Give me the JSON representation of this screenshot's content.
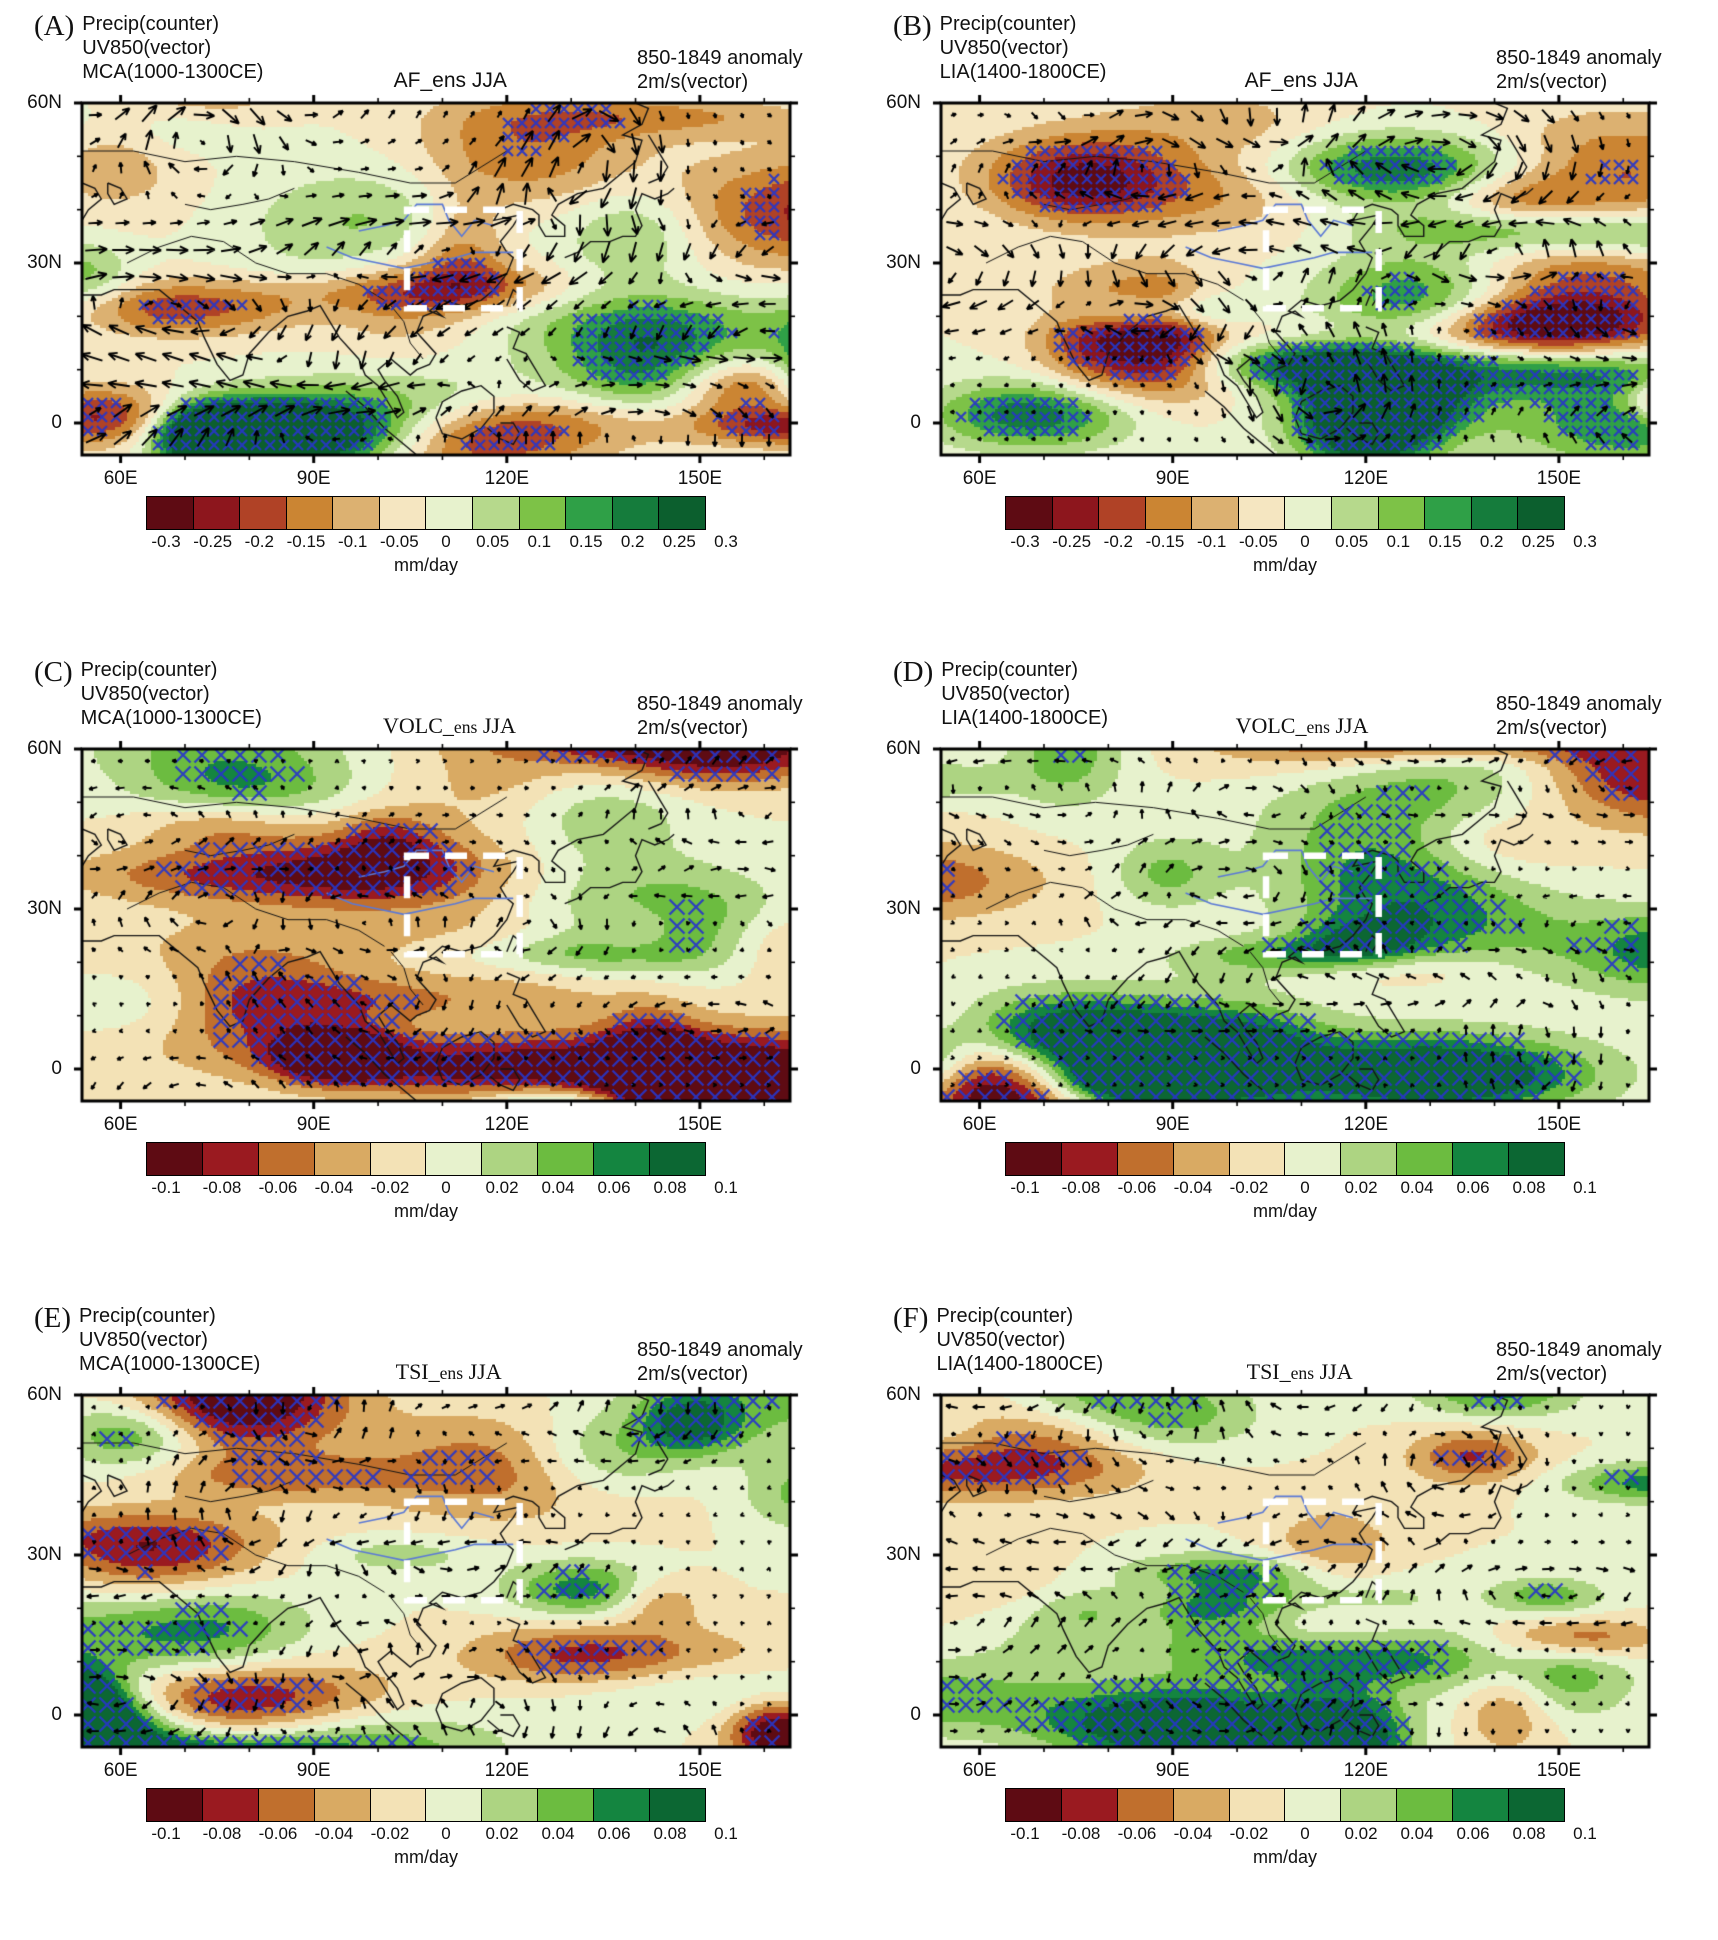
{
  "figure": {
    "panels": [
      {
        "label": "(A)",
        "info_lines": [
          "Precip(counter)",
          "UV850(vector)",
          "MCA(1000-1300CE)"
        ],
        "title": "AF_ens JJA",
        "title_serif": false,
        "right_lines": [
          "850-1849 anomaly",
          "2m/s(vector)"
        ],
        "y_ticks": [
          "60N",
          "30N",
          "0"
        ],
        "x_ticks": [
          "60E",
          "90E",
          "120E",
          "150E"
        ],
        "colorbar": {
          "tick_labels": [
            "-0.3",
            "-0.25",
            "-0.2",
            "-0.15",
            "-0.1",
            "-0.05",
            "0",
            "0.05",
            "0.1",
            "0.15",
            "0.2",
            "0.25",
            "0.3"
          ],
          "colors": [
            "#5e0b13",
            "#8d161d",
            "#b04226",
            "#cb8533",
            "#dcb171",
            "#f5e6c1",
            "#e7f2cd",
            "#b6d98c",
            "#7dc247",
            "#2fa047",
            "#157c3c",
            "#0c5f2e"
          ],
          "unit": "mm/day"
        },
        "map": {
          "seed": 8,
          "arrow_scale": 1.0,
          "hatch_size": 10,
          "hatch_color": "#2836c8",
          "arrow_color": "#000000",
          "box_color": "#ffffff",
          "river_color": "#5b79d6",
          "coast_color": "#141414"
        }
      },
      {
        "label": "(B)",
        "info_lines": [
          "Precip(counter)",
          "UV850(vector)",
          "LIA(1400-1800CE)"
        ],
        "title": "AF_ens JJA",
        "title_serif": false,
        "right_lines": [
          "850-1849 anomaly",
          "2m/s(vector)"
        ],
        "y_ticks": [
          "60N",
          "30N",
          "0"
        ],
        "x_ticks": [
          "60E",
          "90E",
          "120E",
          "150E"
        ],
        "colorbar": {
          "tick_labels": [
            "-0.3",
            "-0.25",
            "-0.2",
            "-0.15",
            "-0.1",
            "-0.05",
            "0",
            "0.05",
            "0.1",
            "0.15",
            "0.2",
            "0.25",
            "0.3"
          ],
          "colors": [
            "#5e0b13",
            "#8d161d",
            "#b04226",
            "#cb8533",
            "#dcb171",
            "#f5e6c1",
            "#e7f2cd",
            "#b6d98c",
            "#7dc247",
            "#2fa047",
            "#157c3c",
            "#0c5f2e"
          ],
          "unit": "mm/day"
        },
        "map": {
          "seed": 15,
          "arrow_scale": 0.85,
          "hatch_size": 10,
          "hatch_color": "#2836c8",
          "arrow_color": "#000000",
          "box_color": "#ffffff",
          "river_color": "#5b79d6",
          "coast_color": "#141414"
        }
      },
      {
        "label": "(C)",
        "info_lines": [
          "Precip(counter)",
          "UV850(vector)",
          "MCA(1000-1300CE)"
        ],
        "title": "VOLC_ens JJA",
        "title_serif": true,
        "right_lines": [
          "850-1849 anomaly",
          "2m/s(vector)"
        ],
        "y_ticks": [
          "60N",
          "30N",
          "0"
        ],
        "x_ticks": [
          "60E",
          "90E",
          "120E",
          "150E"
        ],
        "colorbar": {
          "tick_labels": [
            "-0.1",
            "-0.08",
            "-0.06",
            "-0.04",
            "-0.02",
            "0",
            "0.02",
            "0.04",
            "0.06",
            "0.08",
            "0.1"
          ],
          "colors": [
            "#5e0b13",
            "#9a1a20",
            "#c06f2d",
            "#d9aa63",
            "#f3e2b6",
            "#e7f2cd",
            "#add482",
            "#6cbc40",
            "#148540",
            "#0c6733"
          ],
          "unit": "mm/day"
        },
        "map": {
          "seed": 23,
          "arrow_scale": 0.5,
          "hatch_size": 15,
          "hatch_color": "#2836c8",
          "arrow_color": "#000000",
          "box_color": "#ffffff",
          "river_color": "#5b79d6",
          "coast_color": "#141414"
        }
      },
      {
        "label": "(D)",
        "info_lines": [
          "Precip(counter)",
          "UV850(vector)",
          "LIA(1400-1800CE)"
        ],
        "title": "VOLC_ens JJA",
        "title_serif": true,
        "right_lines": [
          "850-1849 anomaly",
          "2m/s(vector)"
        ],
        "y_ticks": [
          "60N",
          "30N",
          "0"
        ],
        "x_ticks": [
          "60E",
          "90E",
          "120E",
          "150E"
        ],
        "colorbar": {
          "tick_labels": [
            "-0.1",
            "-0.08",
            "-0.06",
            "-0.04",
            "-0.02",
            "0",
            "0.02",
            "0.04",
            "0.06",
            "0.08",
            "0.1"
          ],
          "colors": [
            "#5e0b13",
            "#9a1a20",
            "#c06f2d",
            "#d9aa63",
            "#f3e2b6",
            "#e7f2cd",
            "#add482",
            "#6cbc40",
            "#148540",
            "#0c6733"
          ],
          "unit": "mm/day"
        },
        "map": {
          "seed": 31,
          "arrow_scale": 0.5,
          "hatch_size": 15,
          "hatch_color": "#2836c8",
          "arrow_color": "#000000",
          "box_color": "#ffffff",
          "river_color": "#5b79d6",
          "coast_color": "#141414"
        }
      },
      {
        "label": "(E)",
        "info_lines": [
          "Precip(counter)",
          "UV850(vector)",
          "MCA(1000-1300CE)"
        ],
        "title": "TSI_ens JJA",
        "title_serif": true,
        "right_lines": [
          "850-1849 anomaly",
          "2m/s(vector)"
        ],
        "y_ticks": [
          "60N",
          "30N",
          "0"
        ],
        "x_ticks": [
          "60E",
          "90E",
          "120E",
          "150E"
        ],
        "colorbar": {
          "tick_labels": [
            "-0.1",
            "-0.08",
            "-0.06",
            "-0.04",
            "-0.02",
            "0",
            "0.02",
            "0.04",
            "0.06",
            "0.08",
            "0.1"
          ],
          "colors": [
            "#5e0b13",
            "#9a1a20",
            "#c06f2d",
            "#d9aa63",
            "#f3e2b6",
            "#e7f2cd",
            "#add482",
            "#6cbc40",
            "#148540",
            "#0c6733"
          ],
          "unit": "mm/day"
        },
        "map": {
          "seed": 47,
          "arrow_scale": 0.55,
          "hatch_size": 15,
          "hatch_color": "#2836c8",
          "arrow_color": "#000000",
          "box_color": "#ffffff",
          "river_color": "#5b79d6",
          "coast_color": "#141414"
        }
      },
      {
        "label": "(F)",
        "info_lines": [
          "Precip(counter)",
          "UV850(vector)",
          "LIA(1400-1800CE)"
        ],
        "title": "TSI_ens JJA",
        "title_serif": true,
        "right_lines": [
          "850-1849 anomaly",
          "2m/s(vector)"
        ],
        "y_ticks": [
          "60N",
          "30N",
          "0"
        ],
        "x_ticks": [
          "60E",
          "90E",
          "120E",
          "150E"
        ],
        "colorbar": {
          "tick_labels": [
            "-0.1",
            "-0.08",
            "-0.06",
            "-0.04",
            "-0.02",
            "0",
            "0.02",
            "0.04",
            "0.06",
            "0.08",
            "0.1"
          ],
          "colors": [
            "#5e0b13",
            "#9a1a20",
            "#c06f2d",
            "#d9aa63",
            "#f3e2b6",
            "#e7f2cd",
            "#add482",
            "#6cbc40",
            "#148540",
            "#0c6733"
          ],
          "unit": "mm/day"
        },
        "map": {
          "seed": 59,
          "arrow_scale": 0.55,
          "hatch_size": 15,
          "hatch_color": "#2836c8",
          "arrow_color": "#000000",
          "box_color": "#ffffff",
          "river_color": "#5b79d6",
          "coast_color": "#141414"
        }
      }
    ]
  },
  "chart_data": [
    {
      "panel": "A",
      "type": "heatmap",
      "subtype": "filled-contour map with wind vectors",
      "shaded_variable": "Precip anomaly",
      "vector_variable": "UV850 wind (reference 2 m/s)",
      "experiment": "AF_ens",
      "season": "JJA",
      "epoch": "MCA (1000-1300 CE)",
      "baseline": "850-1849 anomaly",
      "unit": "mm/day",
      "colorbar_ticks": [
        -0.3,
        -0.25,
        -0.2,
        -0.15,
        -0.1,
        -0.05,
        0,
        0.05,
        0.1,
        0.15,
        0.2,
        0.25,
        0.3
      ],
      "lon_ticks": [
        "60E",
        "90E",
        "120E",
        "150E"
      ],
      "lat_ticks": [
        "60N",
        "30N",
        "0"
      ],
      "legend_position": "bottom",
      "grid": false
    },
    {
      "panel": "B",
      "type": "heatmap",
      "subtype": "filled-contour map with wind vectors",
      "shaded_variable": "Precip anomaly",
      "vector_variable": "UV850 wind (reference 2 m/s)",
      "experiment": "AF_ens",
      "season": "JJA",
      "epoch": "LIA (1400-1800 CE)",
      "baseline": "850-1849 anomaly",
      "unit": "mm/day",
      "colorbar_ticks": [
        -0.3,
        -0.25,
        -0.2,
        -0.15,
        -0.1,
        -0.05,
        0,
        0.05,
        0.1,
        0.15,
        0.2,
        0.25,
        0.3
      ],
      "lon_ticks": [
        "60E",
        "90E",
        "120E",
        "150E"
      ],
      "lat_ticks": [
        "60N",
        "30N",
        "0"
      ],
      "legend_position": "bottom",
      "grid": false
    },
    {
      "panel": "C",
      "type": "heatmap",
      "subtype": "filled-contour map with wind vectors",
      "shaded_variable": "Precip anomaly",
      "vector_variable": "UV850 wind (reference 2 m/s)",
      "experiment": "VOLC_ens",
      "season": "JJA",
      "epoch": "MCA (1000-1300 CE)",
      "baseline": "850-1849 anomaly",
      "unit": "mm/day",
      "colorbar_ticks": [
        -0.1,
        -0.08,
        -0.06,
        -0.04,
        -0.02,
        0,
        0.02,
        0.04,
        0.06,
        0.08,
        0.1
      ],
      "lon_ticks": [
        "60E",
        "90E",
        "120E",
        "150E"
      ],
      "lat_ticks": [
        "60N",
        "30N",
        "0"
      ],
      "legend_position": "bottom",
      "grid": false
    },
    {
      "panel": "D",
      "type": "heatmap",
      "subtype": "filled-contour map with wind vectors",
      "shaded_variable": "Precip anomaly",
      "vector_variable": "UV850 wind (reference 2 m/s)",
      "experiment": "VOLC_ens",
      "season": "JJA",
      "epoch": "LIA (1400-1800 CE)",
      "baseline": "850-1849 anomaly",
      "unit": "mm/day",
      "colorbar_ticks": [
        -0.1,
        -0.08,
        -0.06,
        -0.04,
        -0.02,
        0,
        0.02,
        0.04,
        0.06,
        0.08,
        0.1
      ],
      "lon_ticks": [
        "60E",
        "90E",
        "120E",
        "150E"
      ],
      "lat_ticks": [
        "60N",
        "30N",
        "0"
      ],
      "legend_position": "bottom",
      "grid": false
    },
    {
      "panel": "E",
      "type": "heatmap",
      "subtype": "filled-contour map with wind vectors",
      "shaded_variable": "Precip anomaly",
      "vector_variable": "UV850 wind (reference 2 m/s)",
      "experiment": "TSI_ens",
      "season": "JJA",
      "epoch": "MCA (1000-1300 CE)",
      "baseline": "850-1849 anomaly",
      "unit": "mm/day",
      "colorbar_ticks": [
        -0.1,
        -0.08,
        -0.06,
        -0.04,
        -0.02,
        0,
        0.02,
        0.04,
        0.06,
        0.08,
        0.1
      ],
      "lon_ticks": [
        "60E",
        "90E",
        "120E",
        "150E"
      ],
      "lat_ticks": [
        "60N",
        "30N",
        "0"
      ],
      "legend_position": "bottom",
      "grid": false
    },
    {
      "panel": "F",
      "type": "heatmap",
      "subtype": "filled-contour map with wind vectors",
      "shaded_variable": "Precip anomaly",
      "vector_variable": "UV850 wind (reference 2 m/s)",
      "experiment": "TSI_ens",
      "season": "JJA",
      "epoch": "LIA (1400-1800 CE)",
      "baseline": "850-1849 anomaly",
      "unit": "mm/day",
      "colorbar_ticks": [
        -0.1,
        -0.08,
        -0.06,
        -0.04,
        -0.02,
        0,
        0.02,
        0.04,
        0.06,
        0.08,
        0.1
      ],
      "lon_ticks": [
        "60E",
        "90E",
        "120E",
        "150E"
      ],
      "lat_ticks": [
        "60N",
        "30N",
        "0"
      ],
      "legend_position": "bottom",
      "grid": false
    }
  ]
}
